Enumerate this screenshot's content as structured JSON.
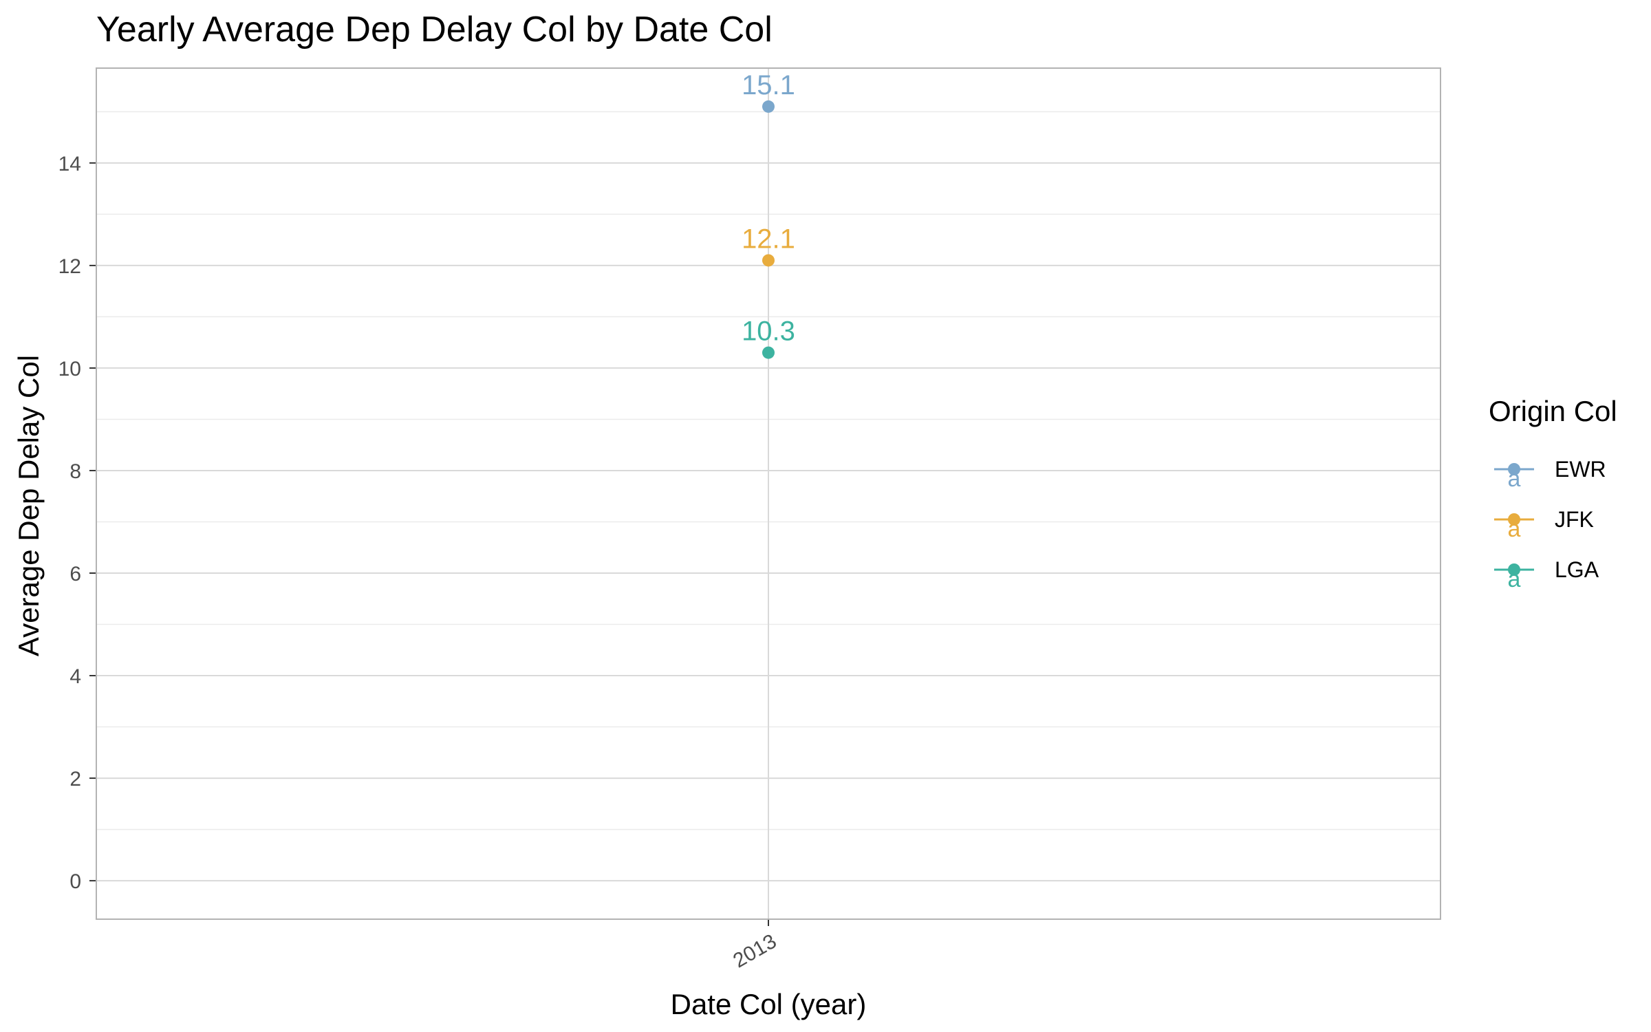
{
  "chart_data": {
    "type": "line",
    "title": "Yearly Average Dep Delay Col by Date Col",
    "xlabel": "Date Col (year)",
    "ylabel": "Average Dep Delay Col",
    "categories": [
      "2013"
    ],
    "ylim": [
      -0.75,
      15.85
    ],
    "yticks": [
      0,
      2,
      4,
      6,
      8,
      10,
      12,
      14
    ],
    "grid": true,
    "legend": {
      "title": "Origin Col",
      "position": "right"
    },
    "series": [
      {
        "name": "EWR",
        "values": [
          15.1
        ],
        "labels": [
          "15.1"
        ],
        "color": "#7BA7CC"
      },
      {
        "name": "JFK",
        "values": [
          12.1
        ],
        "labels": [
          "12.1"
        ],
        "color": "#E8AC3D"
      },
      {
        "name": "LGA",
        "values": [
          10.3
        ],
        "labels": [
          "10.3"
        ],
        "color": "#3DB3A0"
      }
    ],
    "legend_key_glyph": "a"
  }
}
